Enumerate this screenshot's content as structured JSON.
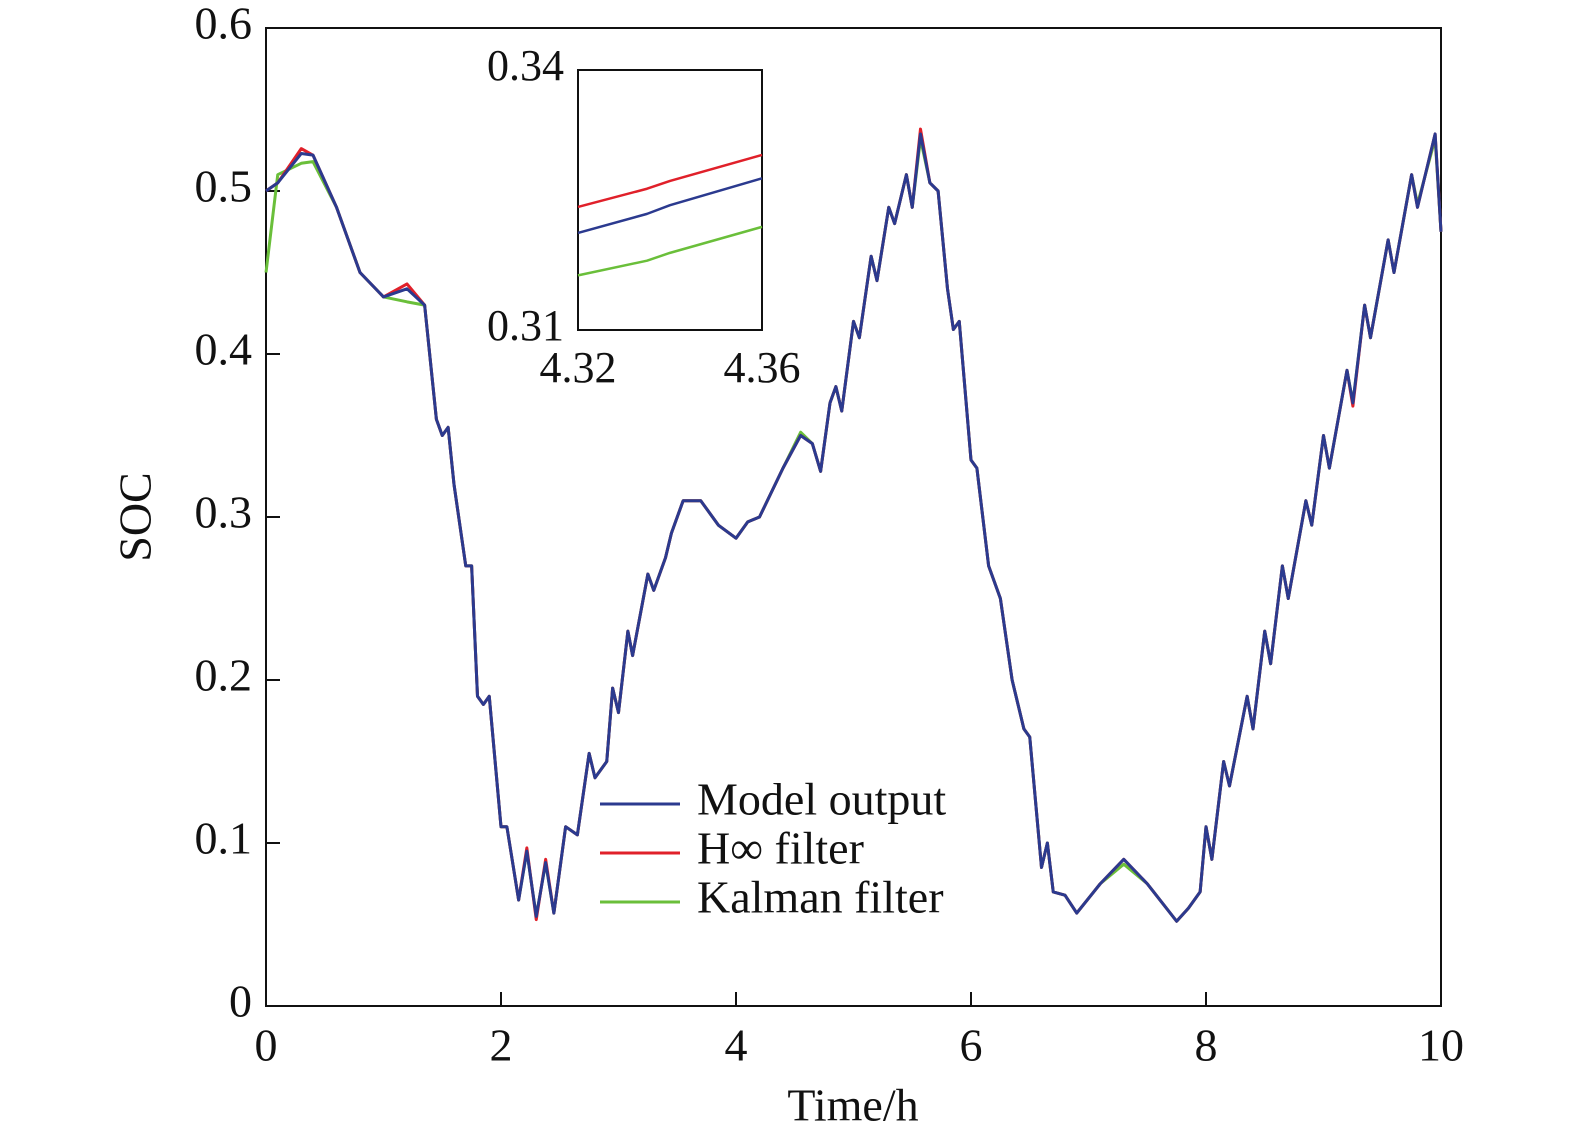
{
  "chart_data": [
    {
      "type": "line",
      "xlabel": "Time/h",
      "ylabel": "SOC",
      "xlim": [
        0,
        10
      ],
      "xticks": [
        0,
        2,
        4,
        6,
        8,
        10
      ],
      "ylim": [
        0,
        0.6
      ],
      "yticks": [
        0,
        0.1,
        0.2,
        0.3,
        0.4,
        0.5,
        0.6
      ],
      "legend": "lower center",
      "x": [
        0,
        0.1,
        0.3,
        0.4,
        0.6,
        0.8,
        1.0,
        1.2,
        1.35,
        1.45,
        1.5,
        1.55,
        1.6,
        1.7,
        1.75,
        1.8,
        1.85,
        1.9,
        2.0,
        2.05,
        2.15,
        2.22,
        2.3,
        2.38,
        2.45,
        2.55,
        2.65,
        2.75,
        2.8,
        2.9,
        2.95,
        3.0,
        3.08,
        3.12,
        3.25,
        3.3,
        3.4,
        3.45,
        3.55,
        3.7,
        3.85,
        4.0,
        4.1,
        4.2,
        4.4,
        4.55,
        4.65,
        4.72,
        4.8,
        4.85,
        4.9,
        5.0,
        5.05,
        5.15,
        5.2,
        5.3,
        5.35,
        5.45,
        5.5,
        5.57,
        5.65,
        5.72,
        5.8,
        5.85,
        5.9,
        6.0,
        6.05,
        6.15,
        6.25,
        6.35,
        6.45,
        6.5,
        6.6,
        6.65,
        6.7,
        6.8,
        6.9,
        7.1,
        7.3,
        7.5,
        7.75,
        7.85,
        7.95,
        8.0,
        8.05,
        8.15,
        8.2,
        8.35,
        8.4,
        8.5,
        8.55,
        8.65,
        8.7,
        8.85,
        8.9,
        9.0,
        9.05,
        9.2,
        9.25,
        9.35,
        9.4,
        9.55,
        9.6,
        9.75,
        9.8,
        9.95,
        10.0
      ],
      "series": [
        {
          "name": "Model output",
          "color": "#2b3a8f",
          "values": [
            0.5,
            0.505,
            0.523,
            0.522,
            0.49,
            0.45,
            0.435,
            0.44,
            0.43,
            0.36,
            0.35,
            0.355,
            0.32,
            0.27,
            0.27,
            0.19,
            0.185,
            0.19,
            0.11,
            0.11,
            0.065,
            0.095,
            0.055,
            0.088,
            0.057,
            0.11,
            0.105,
            0.155,
            0.14,
            0.15,
            0.195,
            0.18,
            0.23,
            0.215,
            0.265,
            0.255,
            0.275,
            0.29,
            0.31,
            0.31,
            0.295,
            0.287,
            0.297,
            0.3,
            0.33,
            0.35,
            0.345,
            0.328,
            0.37,
            0.38,
            0.365,
            0.42,
            0.41,
            0.46,
            0.445,
            0.49,
            0.48,
            0.51,
            0.49,
            0.535,
            0.505,
            0.5,
            0.44,
            0.415,
            0.42,
            0.335,
            0.33,
            0.27,
            0.25,
            0.2,
            0.17,
            0.165,
            0.085,
            0.1,
            0.07,
            0.068,
            0.057,
            0.075,
            0.09,
            0.075,
            0.052,
            0.06,
            0.07,
            0.11,
            0.09,
            0.15,
            0.135,
            0.19,
            0.17,
            0.23,
            0.21,
            0.27,
            0.25,
            0.31,
            0.295,
            0.35,
            0.33,
            0.39,
            0.37,
            0.43,
            0.41,
            0.47,
            0.45,
            0.51,
            0.49,
            0.535,
            0.475
          ]
        },
        {
          "name": "H∞ filter",
          "color": "#e0202a",
          "values": [
            0.5,
            0.505,
            0.526,
            0.522,
            0.49,
            0.45,
            0.435,
            0.443,
            0.43,
            0.36,
            0.35,
            0.355,
            0.32,
            0.27,
            0.27,
            0.19,
            0.185,
            0.19,
            0.11,
            0.11,
            0.065,
            0.097,
            0.053,
            0.09,
            0.057,
            0.11,
            0.105,
            0.155,
            0.14,
            0.15,
            0.195,
            0.18,
            0.23,
            0.215,
            0.265,
            0.255,
            0.275,
            0.29,
            0.31,
            0.31,
            0.295,
            0.287,
            0.297,
            0.3,
            0.33,
            0.35,
            0.345,
            0.328,
            0.37,
            0.38,
            0.365,
            0.42,
            0.41,
            0.46,
            0.445,
            0.49,
            0.48,
            0.51,
            0.49,
            0.538,
            0.505,
            0.5,
            0.44,
            0.415,
            0.42,
            0.335,
            0.33,
            0.27,
            0.25,
            0.2,
            0.17,
            0.165,
            0.085,
            0.1,
            0.07,
            0.068,
            0.057,
            0.075,
            0.09,
            0.075,
            0.052,
            0.06,
            0.07,
            0.11,
            0.09,
            0.15,
            0.135,
            0.19,
            0.17,
            0.23,
            0.21,
            0.27,
            0.25,
            0.31,
            0.295,
            0.35,
            0.33,
            0.39,
            0.368,
            0.43,
            0.41,
            0.47,
            0.45,
            0.51,
            0.49,
            0.535,
            0.475
          ]
        },
        {
          "name": "Kalman filter",
          "color": "#6abf3a",
          "values": [
            0.45,
            0.51,
            0.517,
            0.518,
            0.49,
            0.45,
            0.435,
            0.432,
            0.43,
            0.36,
            0.35,
            0.355,
            0.32,
            0.27,
            0.27,
            0.19,
            0.185,
            0.19,
            0.11,
            0.11,
            0.065,
            0.095,
            0.055,
            0.088,
            0.057,
            0.11,
            0.105,
            0.155,
            0.14,
            0.15,
            0.195,
            0.18,
            0.23,
            0.215,
            0.265,
            0.255,
            0.275,
            0.29,
            0.31,
            0.31,
            0.295,
            0.287,
            0.297,
            0.3,
            0.33,
            0.352,
            0.345,
            0.328,
            0.37,
            0.38,
            0.365,
            0.42,
            0.41,
            0.46,
            0.445,
            0.49,
            0.48,
            0.51,
            0.49,
            0.532,
            0.505,
            0.5,
            0.44,
            0.415,
            0.42,
            0.335,
            0.33,
            0.27,
            0.25,
            0.2,
            0.17,
            0.165,
            0.085,
            0.1,
            0.07,
            0.068,
            0.057,
            0.075,
            0.087,
            0.075,
            0.052,
            0.06,
            0.07,
            0.11,
            0.09,
            0.15,
            0.135,
            0.19,
            0.17,
            0.23,
            0.21,
            0.27,
            0.25,
            0.31,
            0.295,
            0.35,
            0.33,
            0.39,
            0.37,
            0.43,
            0.41,
            0.47,
            0.45,
            0.51,
            0.492,
            0.532,
            0.475
          ]
        }
      ]
    },
    {
      "type": "line",
      "xlim": [
        4.32,
        4.36
      ],
      "xticks": [
        4.32,
        4.36
      ],
      "ylim": [
        0.31,
        0.34
      ],
      "yticks": [
        0.31,
        0.34
      ],
      "x": [
        4.32,
        4.335,
        4.34,
        4.36
      ],
      "series": [
        {
          "color": "#2b3a8f",
          "values": [
            0.3212,
            0.3234,
            0.3244,
            0.3275
          ]
        },
        {
          "color": "#e0202a",
          "values": [
            0.3242,
            0.3263,
            0.3272,
            0.3302
          ]
        },
        {
          "color": "#6abf3a",
          "values": [
            0.3163,
            0.318,
            0.3189,
            0.3219
          ]
        }
      ]
    }
  ]
}
